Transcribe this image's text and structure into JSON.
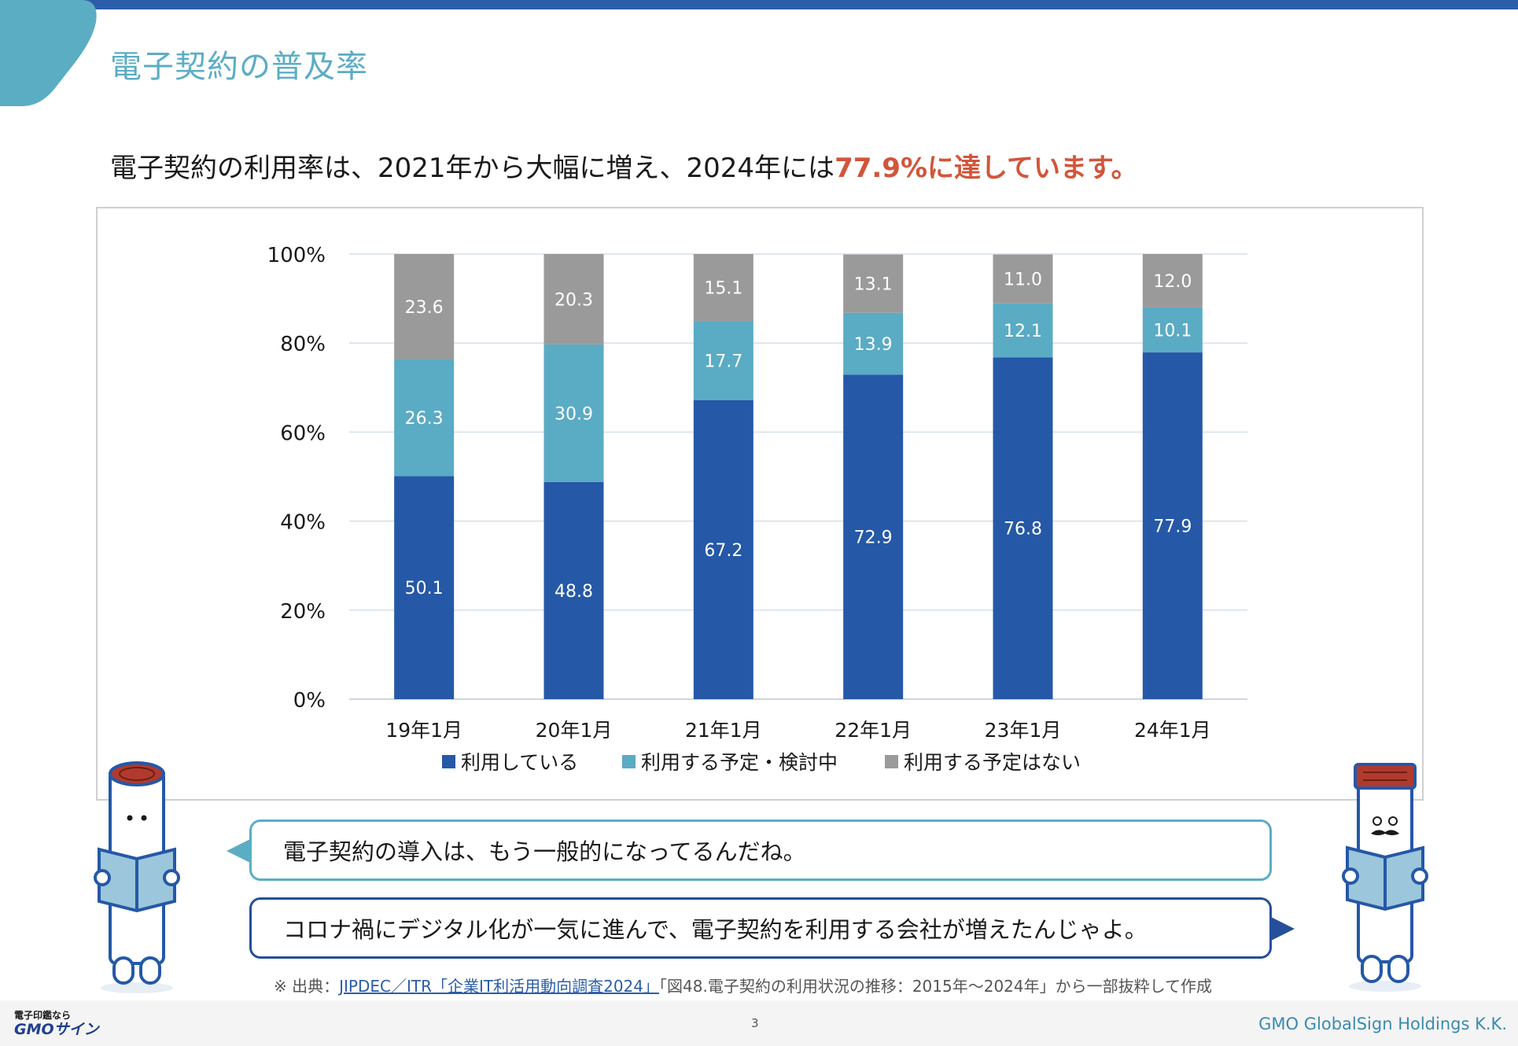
{
  "page": {
    "title": "電子契約の普及率",
    "headline_lead": "電子契約の利用率は、2021年から大幅に増え、2024年には",
    "headline_accent": "77.9%に達しています。"
  },
  "colors": {
    "top_bar": "#2b5da8",
    "title": "#5badc4",
    "accent": "#d2553a",
    "series_using": "#2558a7",
    "series_planning": "#5aabc4",
    "series_no_plan": "#9a9a9a"
  },
  "chart_data": {
    "type": "bar",
    "stacked": true,
    "categories": [
      "19年1月",
      "20年1月",
      "21年1月",
      "22年1月",
      "23年1月",
      "24年1月"
    ],
    "series": [
      {
        "name": "利用している",
        "color": "#2558a7",
        "values": [
          50.1,
          48.8,
          67.2,
          72.9,
          76.8,
          77.9
        ]
      },
      {
        "name": "利用する予定・検討中",
        "color": "#5aabc4",
        "values": [
          26.3,
          30.9,
          17.7,
          13.9,
          12.1,
          10.1
        ]
      },
      {
        "name": "利用する予定はない",
        "color": "#9a9a9a",
        "values": [
          23.6,
          20.3,
          15.1,
          13.1,
          11.0,
          12.0
        ]
      }
    ],
    "value_labels": [
      [
        "50.1",
        "48.8",
        "67.2",
        "72.9",
        "76.8",
        "77.9"
      ],
      [
        "26.3",
        "30.9",
        "17.7",
        "13.9",
        "12.1",
        "10.1"
      ],
      [
        "23.6",
        "20.3",
        "15.1",
        "13.1",
        "11.0",
        "12.0"
      ]
    ],
    "y_ticks": [
      "0%",
      "20%",
      "40%",
      "60%",
      "80%",
      "100%"
    ],
    "ylim": [
      0,
      100
    ],
    "grid": true,
    "legend_position": "bottom"
  },
  "dialogue": {
    "bubble_1": "電子契約の導入は、もう一般的になってるんだね。",
    "bubble_2": "コロナ禍にデジタル化が一気に進んで、電子契約を利用する会社が増えたんじゃよ。"
  },
  "source": {
    "prefix": "※ 出典：",
    "link_text": "JIPDEC／ITR「企業IT利活用動向調査2024」",
    "suffix": "「図48.電子契約の利用状況の推移：2015年～2024年」から一部抜粋して作成"
  },
  "footer": {
    "logo_small": "電子印鑑なら",
    "logo_main": "GMOサイン",
    "page_number": "3",
    "company": "GMO GlobalSign Holdings K.K."
  }
}
